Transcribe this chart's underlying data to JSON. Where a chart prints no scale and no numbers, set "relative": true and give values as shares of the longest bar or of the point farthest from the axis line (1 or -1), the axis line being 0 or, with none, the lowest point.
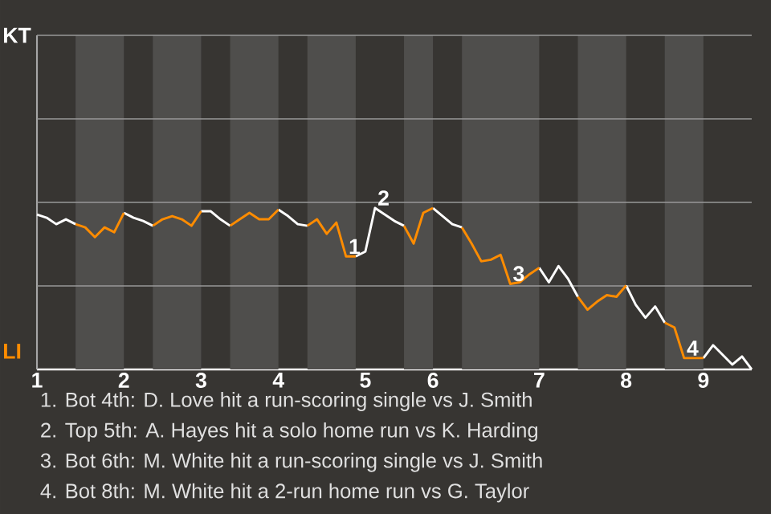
{
  "chart_data": {
    "type": "line",
    "relative": true,
    "marker": "none",
    "line_style": "solid",
    "categories": [
      "1",
      null,
      null,
      null,
      null,
      null,
      null,
      null,
      null,
      "2",
      null,
      null,
      null,
      null,
      null,
      null,
      null,
      "3",
      null,
      null,
      null,
      null,
      null,
      null,
      null,
      "4",
      null,
      null,
      null,
      null,
      null,
      null,
      null,
      null,
      "5",
      null,
      null,
      null,
      null,
      null,
      null,
      "6",
      null,
      null,
      null,
      null,
      null,
      null,
      null,
      null,
      null,
      null,
      "7",
      null,
      null,
      null,
      null,
      null,
      null,
      null,
      null,
      "8",
      null,
      null,
      null,
      null,
      null,
      null,
      null,
      "9",
      null,
      null,
      null,
      null,
      null
    ],
    "series": [
      {
        "name": "KT",
        "color": "#ffffff",
        "values": [
          0.96,
          0.94,
          0.9,
          0.93,
          0.9,
          null,
          null,
          null,
          null,
          0.97,
          0.94,
          0.92,
          0.89,
          null,
          null,
          null,
          null,
          0.98,
          0.98,
          0.93,
          0.89,
          null,
          null,
          null,
          null,
          0.99,
          0.95,
          0.9,
          0.89,
          null,
          null,
          null,
          null,
          0.7,
          0.73,
          1.0,
          0.96,
          0.92,
          0.89,
          null,
          null,
          1.0,
          0.95,
          0.9,
          0.88,
          null,
          null,
          null,
          null,
          null,
          null,
          null,
          0.63,
          0.54,
          0.64,
          0.56,
          0.45,
          null,
          null,
          null,
          null,
          0.52,
          0.4,
          0.32,
          0.39,
          0.29,
          null,
          null,
          null,
          0.07,
          0.15,
          0.09,
          0.03,
          0.08,
          0
        ]
      },
      {
        "name": "LI",
        "color": "#ff8c00",
        "values": [
          null,
          null,
          null,
          null,
          0.9,
          0.88,
          0.82,
          0.88,
          0.85,
          0.97,
          null,
          null,
          0.89,
          0.93,
          0.95,
          0.93,
          0.89,
          0.98,
          null,
          null,
          0.89,
          0.93,
          0.97,
          0.93,
          0.93,
          0.99,
          null,
          null,
          0.89,
          0.93,
          0.84,
          0.91,
          0.7,
          0.7,
          null,
          null,
          null,
          null,
          0.89,
          0.78,
          0.97,
          1.0,
          null,
          null,
          0.88,
          0.78,
          0.67,
          0.68,
          0.71,
          0.53,
          0.54,
          0.59,
          0.63,
          null,
          null,
          null,
          0.45,
          0.37,
          0.42,
          0.46,
          0.45,
          0.52,
          null,
          null,
          null,
          0.29,
          0.26,
          0.07,
          0.07,
          0.07,
          null,
          null,
          null,
          null,
          null
        ]
      }
    ],
    "ref_lines": [
      {
        "axis": "y",
        "value": 0.5175,
        "color": "#999999"
      },
      {
        "axis": "y",
        "value": 1.035,
        "color": "#999999"
      },
      {
        "axis": "y",
        "value": 1.5525,
        "color": "#999999"
      },
      {
        "axis": "y",
        "value": 2.07,
        "color": "#999999"
      }
    ],
    "annotations": [
      {
        "text": "1",
        "y": 0.7
      },
      {
        "text": "2",
        "y": 1.0
      },
      {
        "text": "3",
        "y": 0.53
      },
      {
        "text": "4",
        "y": 0.07
      },
      "1. Bot 4th: D. Love hit a run-scoring single vs J. Smith",
      "2. Top 5th: A. Hayes hit a solo home run vs K. Harding",
      "3. Bot 6th: M. White hit a run-scoring single vs J. Smith",
      "4. Bot 8th: M. White hit a 2-run home run vs G. Taylor"
    ]
  }
}
